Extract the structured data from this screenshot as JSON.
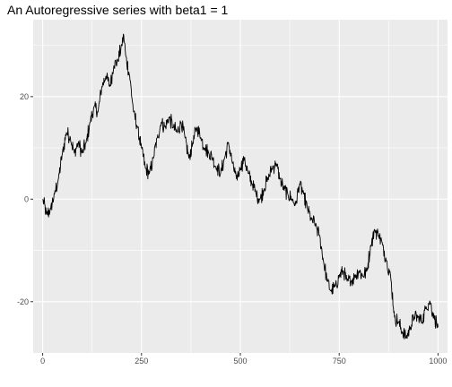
{
  "chart_data": {
    "type": "line",
    "title": "An Autoregressive series with beta1 = 1",
    "xlabel": "",
    "ylabel": "",
    "xlim": [
      -24,
      1024
    ],
    "ylim": [
      -30,
      35
    ],
    "x_ticks": [
      0,
      250,
      500,
      750,
      1000
    ],
    "x_tick_labels": [
      "0",
      "250",
      "500",
      "750",
      "1000"
    ],
    "y_ticks": [
      -20,
      0,
      20
    ],
    "y_tick_labels": [
      "-20",
      "0",
      "20"
    ],
    "grid": true,
    "legend": "none",
    "colors": {
      "panel": "#ebebeb",
      "grid": "#ffffff",
      "line": "#000000",
      "tick_text": "#4d4d4d"
    },
    "series": [
      {
        "x": [
          0,
          10,
          20,
          30,
          40,
          50,
          60,
          70,
          80,
          90,
          100,
          110,
          120,
          130,
          140,
          150,
          160,
          170,
          180,
          190,
          200,
          205,
          210,
          220,
          230,
          240,
          250,
          260,
          270,
          280,
          290,
          300,
          310,
          320,
          330,
          340,
          350,
          360,
          370,
          380,
          390,
          400,
          410,
          420,
          430,
          440,
          450,
          460,
          470,
          480,
          490,
          500,
          510,
          520,
          530,
          540,
          550,
          560,
          570,
          580,
          590,
          600,
          610,
          620,
          630,
          640,
          650,
          660,
          670,
          680,
          690,
          700,
          710,
          720,
          730,
          740,
          750,
          760,
          770,
          780,
          790,
          800,
          810,
          820,
          830,
          840,
          850,
          860,
          870,
          880,
          890,
          900,
          910,
          920,
          930,
          940,
          950,
          960,
          970,
          980,
          990,
          1000
        ],
        "y": [
          0,
          -3,
          -2,
          1,
          4,
          9,
          13,
          12,
          9,
          11,
          9,
          11,
          15,
          18,
          17,
          22,
          24,
          22,
          26,
          27,
          30,
          32,
          28,
          24,
          17,
          14,
          10,
          6,
          5,
          8,
          12,
          15,
          14,
          16,
          14,
          13,
          15,
          12,
          8,
          11,
          14,
          12,
          10,
          9,
          8,
          6,
          5,
          8,
          11,
          7,
          4,
          6,
          8,
          5,
          3,
          1,
          0,
          2,
          4,
          6,
          7,
          4,
          2,
          1,
          0,
          -1,
          3,
          1,
          -2,
          -4,
          -5,
          -7,
          -12,
          -16,
          -18,
          -17,
          -15,
          -14,
          -16,
          -16,
          -15,
          -14,
          -15,
          -14,
          -9,
          -6,
          -7,
          -9,
          -12,
          -15,
          -23,
          -24,
          -26,
          -27,
          -25,
          -23,
          -23,
          -24,
          -21,
          -20,
          -23,
          -25
        ]
      }
    ]
  }
}
